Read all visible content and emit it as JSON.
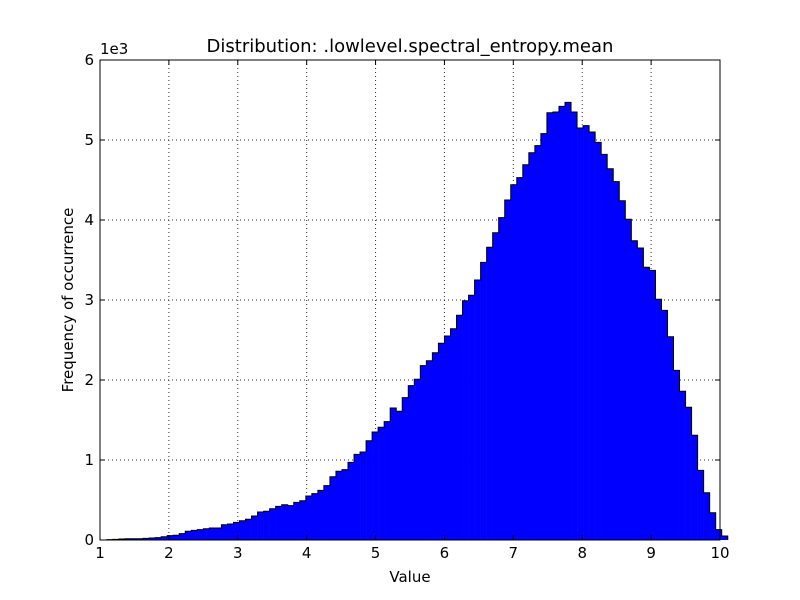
{
  "chart_data": {
    "type": "bar",
    "title": "Distribution: .lowlevel.spectral_entropy.mean",
    "xlabel": "Value",
    "ylabel": "Frequency of occurrence",
    "y_offset_text": "1e3",
    "xlim": [
      1,
      10
    ],
    "ylim": [
      0,
      6000
    ],
    "xticks": [
      "1",
      "2",
      "3",
      "4",
      "5",
      "6",
      "7",
      "8",
      "9",
      "10"
    ],
    "yticks": [
      "0",
      "1",
      "2",
      "3",
      "4",
      "5",
      "6"
    ],
    "grid": true,
    "fill_color": "#0000ff",
    "edge_color": "#000000",
    "bin_start": 1.1,
    "bin_width": 0.0875,
    "values": [
      5,
      8,
      12,
      15,
      15,
      15,
      20,
      25,
      30,
      40,
      55,
      60,
      80,
      110,
      120,
      130,
      140,
      150,
      150,
      190,
      200,
      220,
      240,
      260,
      300,
      350,
      360,
      390,
      420,
      440,
      430,
      470,
      490,
      550,
      580,
      620,
      680,
      790,
      860,
      880,
      970,
      1070,
      1100,
      1240,
      1350,
      1410,
      1480,
      1650,
      1610,
      1780,
      1930,
      2010,
      2180,
      2240,
      2340,
      2460,
      2550,
      2640,
      2810,
      2990,
      3060,
      3250,
      3470,
      3660,
      3840,
      4030,
      4250,
      4440,
      4530,
      4690,
      4840,
      4930,
      5080,
      5340,
      5350,
      5420,
      5470,
      5350,
      5150,
      5180,
      5100,
      4970,
      4820,
      4640,
      4480,
      4240,
      4010,
      3740,
      3650,
      3410,
      3370,
      3010,
      2870,
      2540,
      2120,
      1860,
      1660,
      1310,
      870,
      590,
      340,
      130,
      50
    ]
  }
}
